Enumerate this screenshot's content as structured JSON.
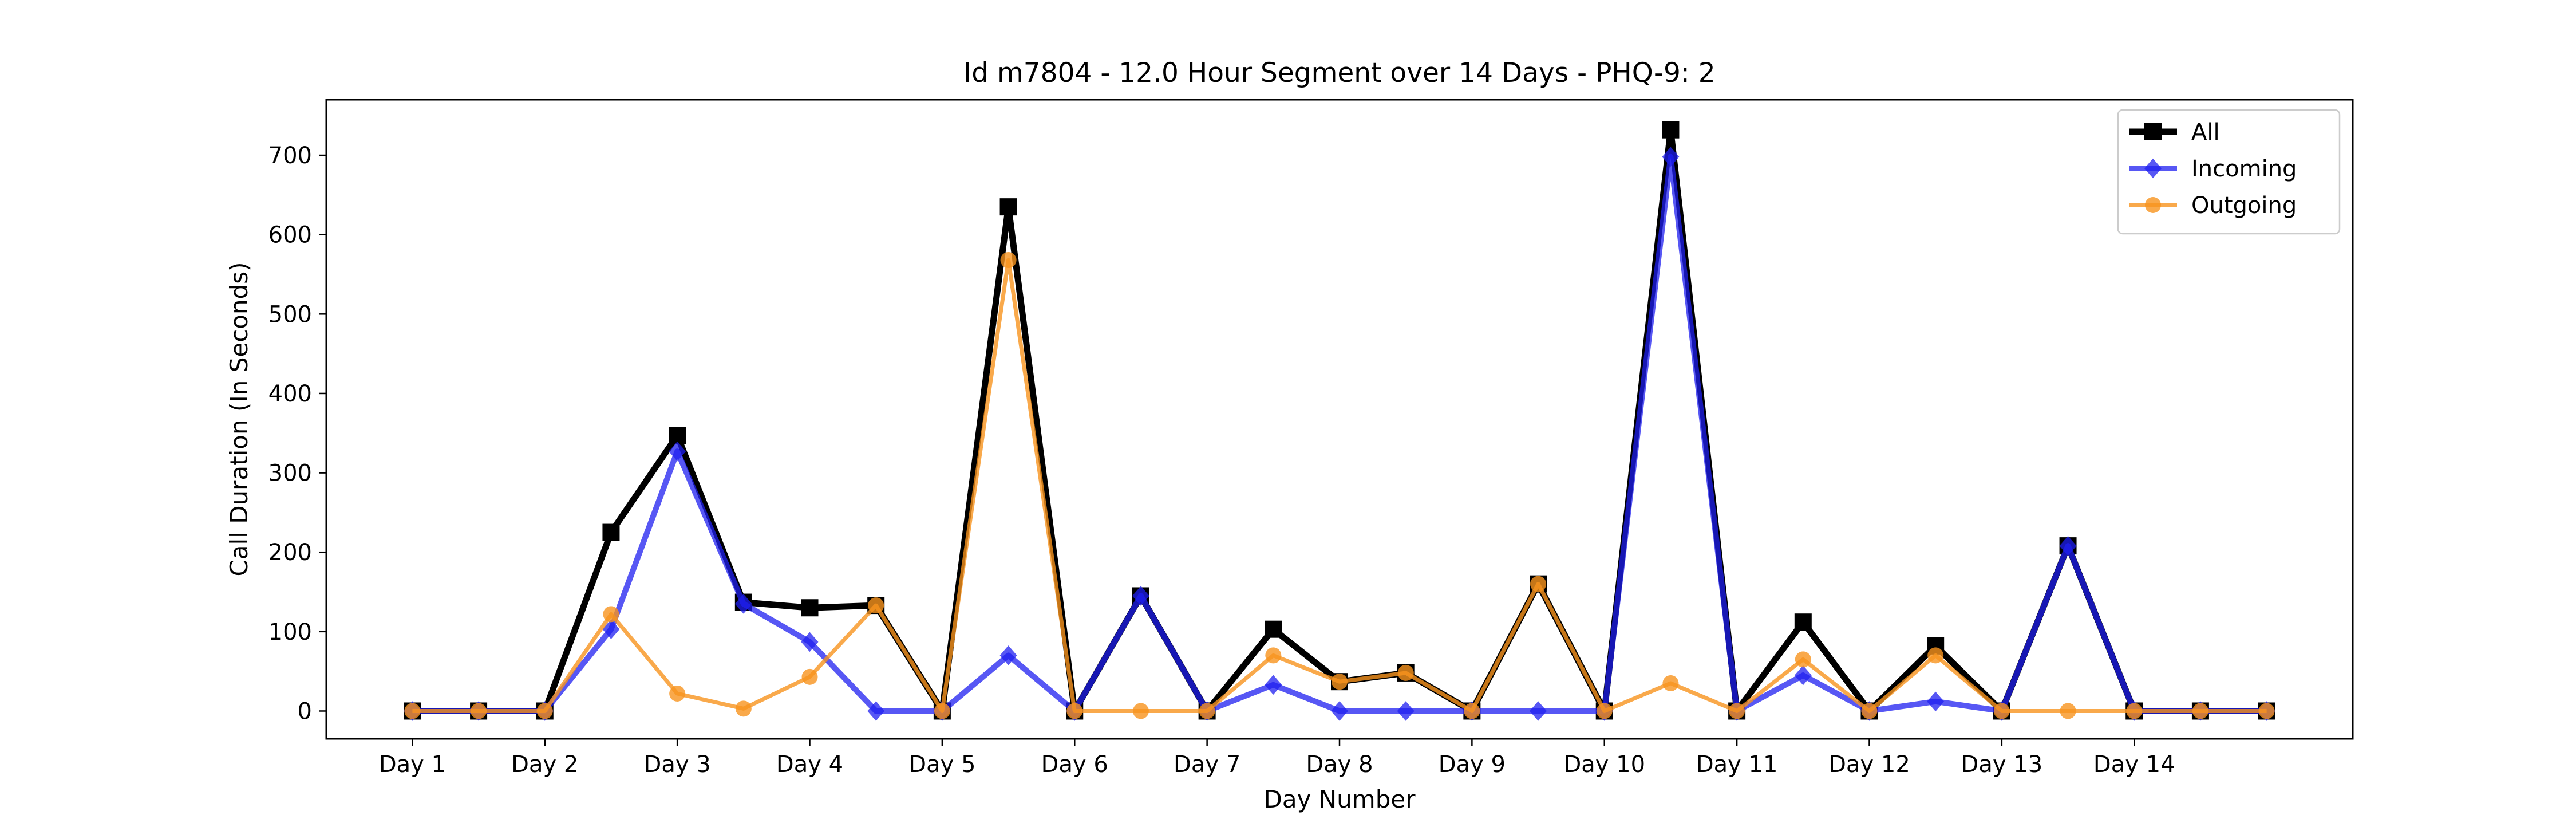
{
  "chart_data": {
    "type": "line",
    "title": "Id m7804 - 12.0 Hour Segment over 14 Days - PHQ-9: 2",
    "xlabel": "Day Number",
    "ylabel": "Call Duration (In Seconds)",
    "ylim": [
      -35,
      770
    ],
    "yticks": [
      0,
      100,
      200,
      300,
      400,
      500,
      600,
      700
    ],
    "grid": false,
    "legend_position": "top-right",
    "x": [
      0,
      0.5,
      1,
      1.5,
      2,
      2.5,
      3,
      3.5,
      4,
      4.5,
      5,
      5.5,
      6,
      6.5,
      7,
      7.5,
      8,
      8.5,
      9,
      9.5,
      10,
      10.5,
      11,
      11.5,
      12,
      12.5,
      13,
      13.5,
      14
    ],
    "xlim": [
      -0.65,
      14.65
    ],
    "xtick_positions": [
      0,
      1,
      2,
      3,
      4,
      5,
      6,
      7,
      8,
      9,
      10,
      11,
      12,
      13
    ],
    "xtick_labels": [
      "Day 1",
      "Day 2",
      "Day 3",
      "Day 4",
      "Day 5",
      "Day 6",
      "Day 7",
      "Day 8",
      "Day 9",
      "Day 10",
      "Day 11",
      "Day 12",
      "Day 13",
      "Day 14"
    ],
    "series": [
      {
        "name": "All",
        "color": "#000000",
        "marker": "square",
        "values": [
          0,
          0,
          0,
          225,
          347,
          137,
          130,
          133,
          0,
          635,
          0,
          145,
          0,
          103,
          37,
          48,
          0,
          160,
          0,
          732,
          0,
          112,
          0,
          82,
          0,
          208,
          0,
          0,
          0
        ]
      },
      {
        "name": "Incoming",
        "color": "#1f1ff0",
        "marker": "diamond",
        "values": [
          0,
          0,
          0,
          103,
          327,
          135,
          87,
          0,
          0,
          70,
          0,
          145,
          0,
          33,
          0,
          0,
          0,
          0,
          0,
          698,
          0,
          45,
          0,
          12,
          0,
          208,
          0,
          0,
          0
        ]
      },
      {
        "name": "Outgoing",
        "color": "#f7931e",
        "marker": "circle",
        "values": [
          0,
          0,
          0,
          122,
          22,
          3,
          43,
          133,
          0,
          568,
          0,
          0,
          0,
          70,
          37,
          48,
          0,
          160,
          0,
          35,
          0,
          65,
          0,
          70,
          0,
          0,
          0,
          0,
          0
        ]
      }
    ]
  }
}
